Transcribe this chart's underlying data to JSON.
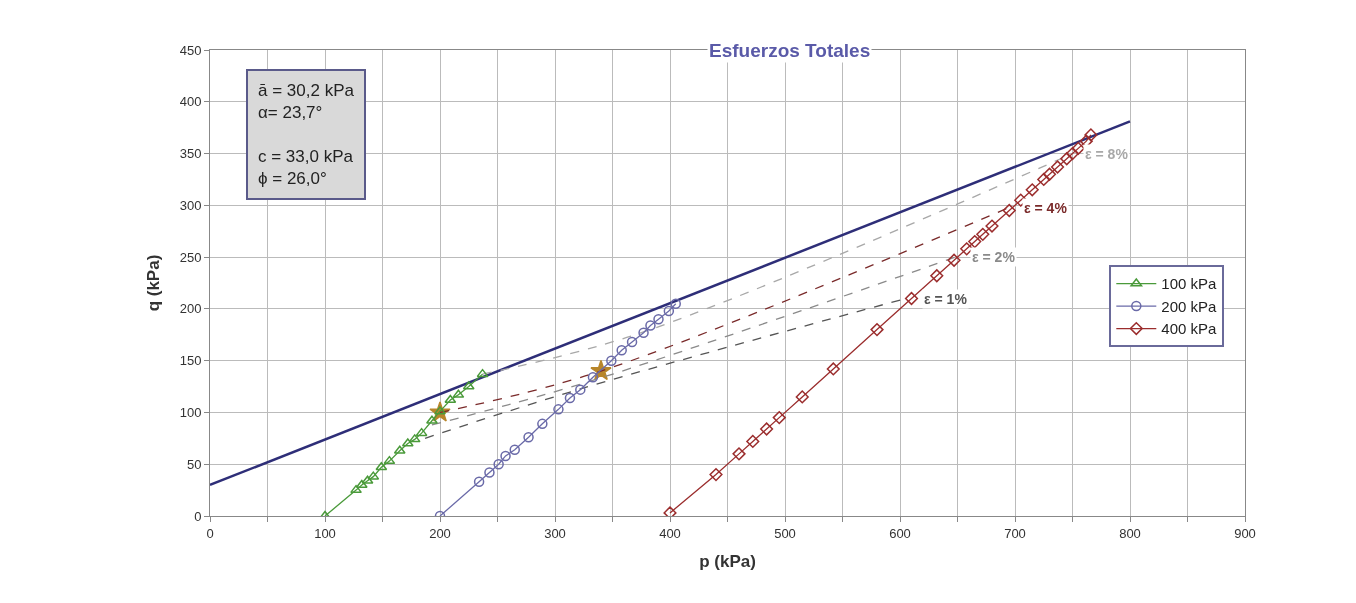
{
  "chart_data": {
    "type": "scatter",
    "title": "Esfuerzos Totales",
    "xlabel": "p (kPa)",
    "ylabel": "q (kPa)",
    "xlim": [
      0,
      900
    ],
    "ylim": [
      0,
      450
    ],
    "xticks": [
      0,
      {
        "value": 50,
        "label": null
      },
      100,
      {
        "value": 150,
        "label": null
      },
      200,
      {
        "value": 250,
        "label": null
      },
      300,
      {
        "value": 350,
        "label": null
      },
      400,
      {
        "value": 450,
        "label": null
      },
      500,
      {
        "value": 550,
        "label": null
      },
      600,
      {
        "value": 650,
        "label": null
      },
      700,
      {
        "value": 750,
        "label": null
      },
      800,
      {
        "value": 850,
        "label": null
      },
      900
    ],
    "yticks": [
      0,
      50,
      100,
      150,
      200,
      250,
      300,
      350,
      400,
      450
    ],
    "grid": true,
    "legend": "right",
    "series": [
      {
        "color": "#b8862b",
        "marker": "star",
        "x": [
          200,
          340
        ],
        "values": [
          100,
          140
        ]
      },
      {
        "type": "line",
        "color": "#2e2e78",
        "marker": "none",
        "line_style": "solid",
        "x": [
          0,
          800
        ],
        "values": [
          30,
          381
        ]
      },
      {
        "type": "line",
        "color": "#555555",
        "marker": "none",
        "line_style": "dashed",
        "x": [
          187,
          323,
          605
        ],
        "values": [
          75,
          123,
          210
        ]
      },
      {
        "type": "line",
        "color": "#8a8a8a",
        "marker": "none",
        "line_style": "dashed",
        "x": [
          193,
          330,
          648
        ],
        "values": [
          88,
          130,
          250
        ]
      },
      {
        "type": "line",
        "color": "#7a2a2a",
        "marker": "none",
        "line_style": "dashed",
        "x": [
          200,
          340,
          693
        ],
        "values": [
          100,
          140,
          297
        ]
      },
      {
        "type": "line",
        "color": "#a8a8a8",
        "marker": "none",
        "line_style": "dashed",
        "x": [
          237,
          375,
          750
        ],
        "values": [
          137,
          177,
          350
        ]
      },
      {
        "name": "100 kPa",
        "type": "line",
        "color": "#4a9a3a",
        "marker": "triangle",
        "line_style": "solid",
        "x": [
          100,
          127,
          132,
          137,
          142,
          149,
          156,
          165,
          172,
          178,
          184,
          193,
          200,
          209,
          216,
          225,
          237
        ],
        "values": [
          0,
          25,
          30,
          34,
          38,
          47,
          53,
          63,
          70,
          74,
          80,
          92,
          101,
          112,
          117,
          125,
          137
        ]
      },
      {
        "name": "200 kPa",
        "type": "line",
        "color": "#6a6aa8",
        "marker": "circle",
        "line_style": "solid",
        "x": [
          200,
          234,
          243,
          251,
          257,
          265,
          277,
          289,
          303,
          313,
          322,
          333,
          349,
          358,
          367,
          377,
          383,
          390,
          399,
          405
        ],
        "values": [
          0,
          33,
          42,
          50,
          58,
          64,
          76,
          89,
          103,
          114,
          122,
          134,
          150,
          160,
          168,
          177,
          184,
          190,
          198,
          205
        ]
      },
      {
        "name": "400 kPa",
        "type": "line",
        "color": "#9b2d2d",
        "marker": "diamond",
        "line_style": "solid",
        "x": [
          400,
          440,
          460,
          472,
          484,
          495,
          515,
          542,
          580,
          610,
          632,
          647,
          658,
          665,
          672,
          680,
          695,
          705,
          715,
          725,
          730,
          737,
          745,
          750,
          755,
          762,
          766
        ],
        "values": [
          3,
          40,
          60,
          72,
          84,
          95,
          115,
          142,
          180,
          210,
          232,
          247,
          258,
          265,
          272,
          280,
          295,
          305,
          315,
          325,
          330,
          337,
          345,
          350,
          355,
          362,
          368
        ]
      }
    ],
    "annotations": [
      "ā = 30,2 kPa\nα= 23,7°\n\nc = 33,0 kPa\nϕ = 26,0°",
      {
        "text": "ε = 1%",
        "x": 610,
        "y": 210
      },
      {
        "text": "ε = 2%",
        "x": 652,
        "y": 250
      },
      {
        "text": "ε = 4%",
        "x": 697,
        "y": 297
      },
      {
        "text": "ε = 8%",
        "x": 750,
        "y": 350
      }
    ]
  }
}
